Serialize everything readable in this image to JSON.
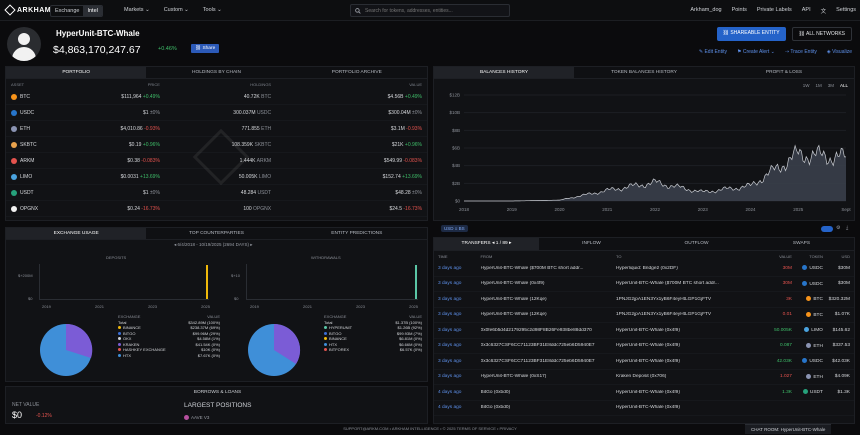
{
  "nav": {
    "logo": "ARKHAM",
    "mode_tabs": [
      "Exchange",
      "Intel"
    ],
    "menus": [
      "Markets ⌄",
      "Custom ⌄",
      "Tools ⌄"
    ],
    "search_placeholder": "Search for tokens, addresses, entities...",
    "right": [
      "Arkham_dog",
      "Points",
      "Private Labels",
      "API",
      "Settings"
    ]
  },
  "entity": {
    "name": "HyperUnit-BTC-Whale",
    "value": "$4,863,170,247.67",
    "change": "+0.46%",
    "share_label": "Share",
    "share_entity": "SHAREABLE ENTITY",
    "all_networks": "ALL NETWORKS",
    "actions": [
      "Edit Entity",
      "Create Alert ⌄",
      "Trace Entity",
      "Visualize"
    ]
  },
  "portfolio": {
    "tabs": [
      "PORTFOLIO",
      "HOLDINGS BY CHAIN",
      "PORTFOLIO ARCHIVE"
    ],
    "headers": [
      "ASSET",
      "PRICE",
      "HOLDINGS",
      "VALUE"
    ],
    "rows": [
      {
        "asset": "BTC",
        "color": "#f7931a",
        "price": "$111,964",
        "pchg": "+0.49%",
        "pcls": "pos",
        "holdings": "40.72K",
        "unit": "BTC",
        "value": "$4.56B",
        "vchg": "+0.49%",
        "vcls": "pos"
      },
      {
        "asset": "USDC",
        "color": "#2775ca",
        "price": "$1",
        "pchg": "±0%",
        "pcls": "neu",
        "holdings": "300.037M",
        "unit": "USDC",
        "value": "$300.04M",
        "vchg": "±0%",
        "vcls": "neu"
      },
      {
        "asset": "ETH",
        "color": "#8a93b2",
        "price": "$4,010.86",
        "pchg": "-0.93%",
        "pcls": "neg",
        "holdings": "771.855",
        "unit": "ETH",
        "value": "$3.1M",
        "vchg": "-0.93%",
        "vcls": "neg"
      },
      {
        "asset": "SKBTC",
        "color": "#e8a24c",
        "price": "$0.19",
        "pchg": "+0.96%",
        "pcls": "pos",
        "holdings": "108.359K",
        "unit": "SKBTC",
        "value": "$21K",
        "vchg": "+0.96%",
        "vcls": "pos"
      },
      {
        "asset": "ARKM",
        "color": "#e4534e",
        "price": "$0.38",
        "pchg": "-0.083%",
        "pcls": "neg",
        "holdings": "1.444K",
        "unit": "ARKM",
        "value": "$549.99",
        "vchg": "-0.083%",
        "vcls": "neg"
      },
      {
        "asset": "LIMO",
        "color": "#4aa3df",
        "price": "$0.0031",
        "pchg": "+13.69%",
        "pcls": "pos",
        "holdings": "50.005K",
        "unit": "LIMO",
        "value": "$152.74",
        "vchg": "+13.69%",
        "vcls": "pos"
      },
      {
        "asset": "USDT",
        "color": "#26a17b",
        "price": "$1",
        "pchg": "±0%",
        "pcls": "neu",
        "holdings": "48.284",
        "unit": "USDT",
        "value": "$48.28",
        "vchg": "±0%",
        "vcls": "neu"
      },
      {
        "asset": "OPGNX",
        "color": "#f2f2f2",
        "price": "$0.24",
        "pchg": "-16.73%",
        "pcls": "neg",
        "holdings": "100",
        "unit": "OPGNX",
        "value": "$24.5",
        "vchg": "-16.73%",
        "vcls": "neg"
      }
    ]
  },
  "balance": {
    "tabs": [
      "BALANCES HISTORY",
      "TOKEN BALANCES HISTORY",
      "PROFIT & LOSS"
    ],
    "ranges": [
      "1W",
      "1M",
      "3M",
      "ALL"
    ],
    "badge": "USD ≡ BS"
  },
  "chart_data": {
    "type": "area",
    "title": "",
    "xlabel": "",
    "ylabel": "",
    "ylim": [
      0,
      12
    ],
    "y_ticks": [
      "$0",
      "$2B",
      "$4B",
      "$6B",
      "$8B",
      "$10B",
      "$12B"
    ],
    "x": [
      "2018",
      "2019",
      "2020",
      "2021",
      "2022",
      "2023",
      "2024",
      "2025",
      "Sept"
    ],
    "series": [
      {
        "values": [
          0.0,
          0.0,
          0.1,
          1.2,
          2.1,
          1.0,
          1.7,
          5.3,
          4.9
        ]
      }
    ]
  },
  "exchange": {
    "tabs": [
      "EXCHANGE USAGE",
      "TOP COUNTERPARTIES",
      "ENTITY PREDICTIONS"
    ],
    "range": "6/4/2018 - 10/19/2025 (2694 DAYS)",
    "deposits": "DEPOSITS",
    "withdrawals": "WITHDRAWALS",
    "dep_axis": [
      "$+200M",
      "$0"
    ],
    "wd_axis": [
      "$+10",
      "$0"
    ],
    "years": [
      "2019",
      "2021",
      "2023",
      "2025"
    ],
    "dep_legend_head": [
      "EXCHANGE",
      "VALUE"
    ],
    "dep_legend": [
      {
        "n": "Total",
        "v": "$342.89M (100%)",
        "c": ""
      },
      {
        "n": "BINANCE",
        "v": "$238.37M (69%)",
        "c": "#f0b90b"
      },
      {
        "n": "BITGO",
        "v": "$99.96M (29%)",
        "c": "#3a6fd8"
      },
      {
        "n": "OKX",
        "v": "$4.58M (1%)",
        "c": "#cfd2d7"
      },
      {
        "n": "KRAKEN",
        "v": "$41.54K (0%)",
        "c": "#7b5cd6"
      },
      {
        "n": "HASHKEY EXCHANGE",
        "v": "$10K (0%)",
        "c": "#e4534e"
      },
      {
        "n": "HTX",
        "v": "$7.67K (0%)",
        "c": "#3f8fd8"
      }
    ],
    "wd_legend": [
      {
        "n": "Total",
        "v": "$1.37B (100%)",
        "c": ""
      },
      {
        "n": "HYPERUNIT",
        "v": "$1.26B (92%)",
        "c": "#5bc6a6"
      },
      {
        "n": "BITGO",
        "v": "$99.93M (7%)",
        "c": "#3a6fd8"
      },
      {
        "n": "BINANCE",
        "v": "$6.81M (0%)",
        "c": "#f0b90b"
      },
      {
        "n": "HTX",
        "v": "$6.66M (0%)",
        "c": "#3f8fd8"
      },
      {
        "n": "BITFOREX",
        "v": "$6.57K (0%)",
        "c": "#e4534e"
      }
    ]
  },
  "borrows": {
    "title": "BORROWS & LOANS",
    "net_label": "NET VALUE",
    "net_value": "$0",
    "net_chg": "-0.12%",
    "largest": "LARGEST POSITIONS",
    "pos0": "AAVE V3"
  },
  "transfers": {
    "tabs": [
      "TRANSFERS",
      "INFLOW",
      "OUTFLOW",
      "SWAPS"
    ],
    "page": "1 / 89",
    "headers": [
      "TIME",
      "FROM",
      "TO",
      "VALUE",
      "TOKEN",
      "USD"
    ],
    "rows": [
      {
        "age": "3 days ago",
        "from": "HyperUnit-BTC-Whale ($700M BTC short addr...",
        "to": "Hyperliquid: Bridge2 (0x2DF)",
        "val": "30M",
        "vcls": "neg",
        "tok": "USDC",
        "usd": "$30M",
        "chip": "#2775ca"
      },
      {
        "age": "3 days ago",
        "from": "HyperUnit-BTC-Whale (0x4f9)",
        "to": "HyperUnit-BTC-Whale ($700M BTC short addr...",
        "val": "30M",
        "vcls": "neg",
        "tok": "USDC",
        "usd": "$30M",
        "chip": "#2775ca"
      },
      {
        "age": "3 days ago",
        "from": "HyperUnit-BTC-Whale (12Kqe)",
        "to": "1PNJG2jpA1EN3Yx1yB6F4eyHtLGP1GjFTV",
        "val": "3K",
        "vcls": "neg",
        "tok": "BTC",
        "usd": "$320.32M",
        "chip": "#f7931a"
      },
      {
        "age": "3 days ago",
        "from": "HyperUnit-BTC-Whale (12Kqe)",
        "to": "1PNJG2jpA1EN3Yx1yB6F4eyHtLGP1GjFTV",
        "val": "0.01",
        "vcls": "neg",
        "tok": "BTC",
        "usd": "$1.07K",
        "chip": "#f7931a"
      },
      {
        "age": "3 days ago",
        "from": "0x0fe6b5d4d2179295c2d98F8B26Fe938be88dd370",
        "to": "HyperUnit-BTC-Whale (0x4f9)",
        "val": "50.005K",
        "vcls": "pos",
        "tok": "LIMO",
        "usd": "$145.62",
        "chip": "#4aa3df"
      },
      {
        "age": "3 days ago",
        "from": "0x3c6327CSF6CC71123BF31E8ddc725eb6D5940E7",
        "to": "HyperUnit-BTC-Whale (0x4f9)",
        "val": "0.087",
        "vcls": "pos",
        "tok": "ETH",
        "usd": "$337.53",
        "chip": "#8a93b2"
      },
      {
        "age": "3 days ago",
        "from": "0x3c6327CSF6CC71123BF31E8ddc725eb6D5940E7",
        "to": "HyperUnit-BTC-Whale (0x4f9)",
        "val": "42.03K",
        "vcls": "pos",
        "tok": "USDC",
        "usd": "$42.03K",
        "chip": "#2775ca"
      },
      {
        "age": "3 days ago",
        "from": "HyperUnit-BTC-Whale (0xS17)",
        "to": "Kraken Deposit (0x706)",
        "val": "1.027",
        "vcls": "neg",
        "tok": "ETH",
        "usd": "$4.09K",
        "chip": "#8a93b2"
      },
      {
        "age": "4 days ago",
        "from": "BitGo (0xbd0)",
        "to": "HyperUnit-BTC-Whale (0x4f9)",
        "val": "1.3K",
        "vcls": "pos",
        "tok": "USDT",
        "usd": "$1.3K",
        "chip": "#26a17b"
      },
      {
        "age": "4 days ago",
        "from": "BitGo (0xbd0)",
        "to": "HyperUnit-BTC-Whale (0x4f9)",
        "val": "",
        "vcls": "pos",
        "tok": "",
        "usd": "",
        "chip": "#26a17b"
      }
    ]
  },
  "footer": "SUPPORT@ARKM.COM • ARKHAM INTELLIGENCE • © 2025 TERMS OF SERVICE • PRIVACY",
  "chat": "CHAT ROOM: HyperUnit-BTC-Whale"
}
